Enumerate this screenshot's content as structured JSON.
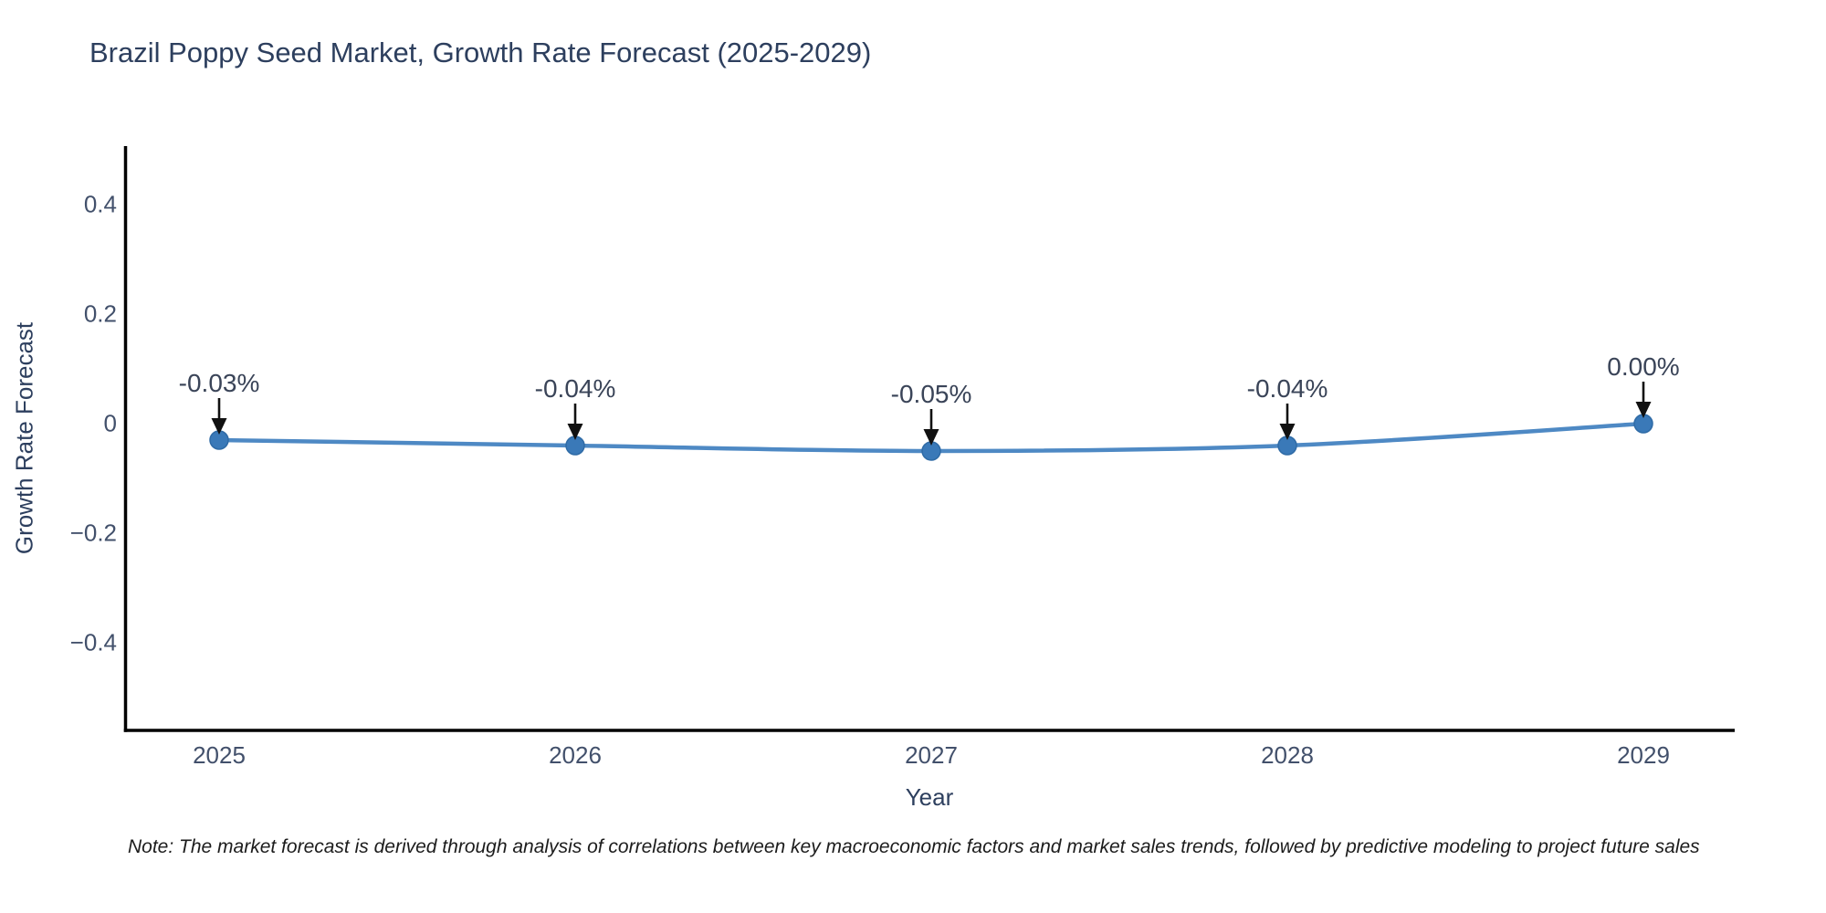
{
  "chart_data": {
    "type": "line",
    "title": "Brazil Poppy Seed Market, Growth Rate Forecast (2025-2029)",
    "xlabel": "Year",
    "ylabel": "Growth Rate Forecast",
    "categories": [
      "2025",
      "2026",
      "2027",
      "2028",
      "2029"
    ],
    "series": [
      {
        "name": "Growth Rate Forecast",
        "values": [
          -0.03,
          -0.04,
          -0.05,
          -0.04,
          0.0
        ],
        "point_labels": [
          "-0.03%",
          "-0.04%",
          "-0.05%",
          "-0.04%",
          "0.00%"
        ]
      }
    ],
    "y_ticks": [
      {
        "label": "0.4",
        "value": 0.4
      },
      {
        "label": "0.2",
        "value": 0.2
      },
      {
        "label": "0",
        "value": 0
      },
      {
        "label": "−0.2",
        "value": -0.2
      },
      {
        "label": "−0.4",
        "value": -0.4
      }
    ],
    "ylim": [
      -0.56,
      0.51
    ],
    "grid": false,
    "legend_position": "none",
    "line_shape": "spline",
    "annotation_style": "arrow-down-to-point",
    "colors": {
      "line": "#4e89c4",
      "marker": "#3a79b8",
      "marker_edge": "#2f6ba6",
      "arrow": "#111111",
      "axis": "#000000",
      "title": "#2d3f5e",
      "tick": "#42506b",
      "note": "#1c1c1c"
    },
    "note": "Note: The market forecast is derived through analysis of correlations between key macroeconomic factors and market sales trends, followed by predictive modeling to project future sales"
  }
}
